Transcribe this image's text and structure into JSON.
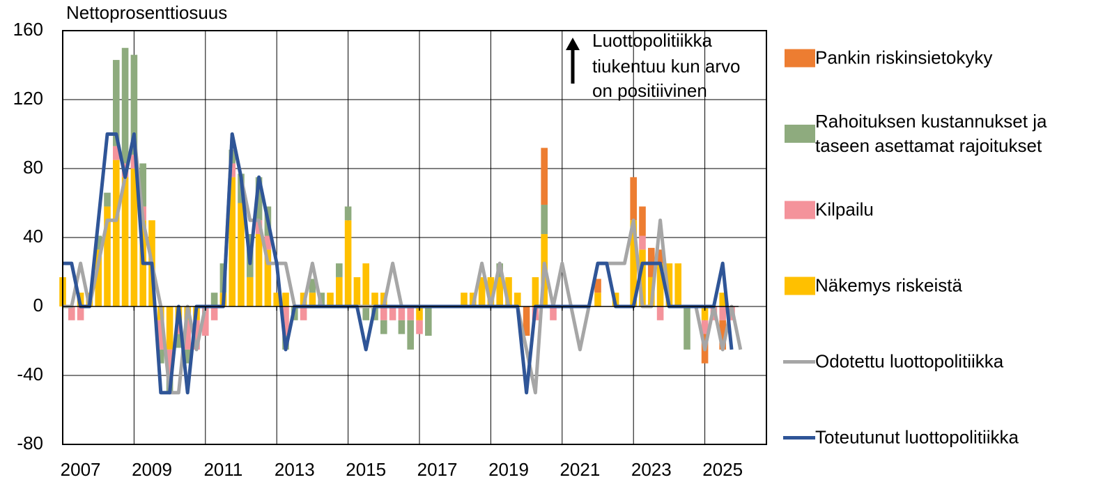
{
  "chart_data": {
    "type": "bar",
    "stacked": true,
    "y_axis_title": "Nettoprosenttiosuus",
    "annotation": [
      "Luottopolitiikka",
      "tiukentuu kun arvo",
      "on positiivinen"
    ],
    "ylim": [
      -80,
      160
    ],
    "yticks": [
      -80,
      -40,
      0,
      40,
      80,
      120,
      160
    ],
    "grid": true,
    "legend": "right",
    "categories": [
      null,
      null,
      "2007",
      null,
      null,
      null,
      null,
      null,
      null,
      null,
      "2009",
      null,
      null,
      null,
      null,
      null,
      null,
      null,
      "2011",
      null,
      null,
      null,
      null,
      null,
      null,
      null,
      "2013",
      null,
      null,
      null,
      null,
      null,
      null,
      null,
      "2015",
      null,
      null,
      null,
      null,
      null,
      null,
      null,
      "2017",
      null,
      null,
      null,
      null,
      null,
      null,
      null,
      "2019",
      null,
      null,
      null,
      null,
      null,
      null,
      null,
      "2021",
      null,
      null,
      null,
      null,
      null,
      null,
      null,
      "2023",
      null,
      null,
      null,
      null,
      null,
      null,
      null,
      "2025",
      null,
      null
    ],
    "series": [
      {
        "name": "Pankin riskinsietokyky",
        "type": "bar",
        "color": "#ED7D31",
        "values": [
          0,
          0,
          0,
          0,
          0,
          0,
          0,
          0,
          0,
          0,
          0,
          0,
          0,
          0,
          0,
          0,
          0,
          0,
          0,
          0,
          0,
          0,
          0,
          0,
          0,
          0,
          0,
          0,
          0,
          0,
          0,
          0,
          0,
          0,
          0,
          0,
          0,
          0,
          0,
          0,
          0,
          0,
          0,
          0,
          0,
          0,
          0,
          0,
          0,
          0,
          0,
          0,
          -17,
          0,
          33,
          0,
          0,
          0,
          0,
          0,
          8,
          0,
          0,
          0,
          25,
          17,
          17,
          8,
          0,
          0,
          0,
          0,
          -17,
          0,
          -17,
          0,
          0
        ]
      },
      {
        "name": "Rahoituksen kustannukset ja taseen asettamat rajoitukset",
        "type": "bar",
        "color": "#8EAB7E",
        "values": [
          0,
          0,
          0,
          0,
          8,
          8,
          50,
          67,
          58,
          25,
          0,
          -8,
          -8,
          -8,
          -8,
          0,
          0,
          8,
          17,
          8,
          17,
          25,
          25,
          17,
          0,
          -8,
          -8,
          0,
          8,
          8,
          0,
          8,
          8,
          0,
          -8,
          -8,
          -8,
          0,
          -8,
          -17,
          0,
          -17,
          0,
          0,
          0,
          0,
          0,
          0,
          0,
          8,
          0,
          0,
          0,
          0,
          17,
          0,
          0,
          0,
          0,
          0,
          0,
          0,
          0,
          0,
          0,
          0,
          0,
          0,
          0,
          0,
          -25,
          0,
          0,
          0,
          0,
          0,
          0
        ]
      },
      {
        "name": "Kilpailu",
        "type": "bar",
        "color": "#F4939B",
        "values": [
          0,
          -8,
          -8,
          0,
          0,
          0,
          8,
          8,
          8,
          8,
          0,
          -17,
          -17,
          -8,
          -17,
          -17,
          -17,
          -8,
          0,
          8,
          0,
          0,
          8,
          8,
          0,
          -17,
          0,
          -8,
          0,
          0,
          0,
          0,
          0,
          0,
          0,
          0,
          -8,
          -8,
          -8,
          -8,
          -8,
          0,
          0,
          0,
          0,
          0,
          0,
          0,
          0,
          0,
          0,
          0,
          0,
          -8,
          0,
          -8,
          0,
          0,
          0,
          0,
          0,
          0,
          0,
          0,
          0,
          8,
          0,
          -8,
          0,
          0,
          0,
          0,
          -8,
          -8,
          -8,
          -8,
          0
        ]
      },
      {
        "name": "Näkemys riskeistä",
        "type": "bar",
        "color": "#FFC000",
        "values": [
          17,
          0,
          8,
          8,
          33,
          58,
          85,
          75,
          80,
          50,
          50,
          -8,
          -25,
          -8,
          -8,
          -8,
          0,
          0,
          8,
          75,
          60,
          17,
          42,
          33,
          8,
          8,
          0,
          8,
          8,
          0,
          8,
          17,
          50,
          17,
          25,
          8,
          8,
          0,
          0,
          0,
          -8,
          0,
          0,
          0,
          0,
          8,
          8,
          17,
          17,
          17,
          17,
          8,
          0,
          17,
          42,
          0,
          0,
          0,
          0,
          0,
          8,
          0,
          8,
          0,
          50,
          33,
          17,
          25,
          25,
          25,
          0,
          0,
          -8,
          0,
          8,
          0,
          0
        ]
      },
      {
        "name": "Odotettu luottopolitiikka",
        "type": "line",
        "color": "#A6A6A6",
        "values": [
          0,
          0,
          25,
          0,
          25,
          50,
          50,
          75,
          100,
          50,
          25,
          0,
          -50,
          -50,
          0,
          -25,
          0,
          0,
          0,
          100,
          75,
          50,
          50,
          25,
          25,
          25,
          0,
          0,
          25,
          0,
          0,
          0,
          0,
          0,
          0,
          0,
          0,
          25,
          0,
          0,
          0,
          0,
          0,
          0,
          0,
          0,
          0,
          25,
          0,
          25,
          0,
          0,
          -25,
          -50,
          25,
          0,
          25,
          0,
          -25,
          0,
          25,
          25,
          25,
          25,
          50,
          0,
          0,
          50,
          0,
          0,
          0,
          0,
          -25,
          0,
          -25,
          0,
          -25
        ]
      },
      {
        "name": "Toteutunut luottopolitiikka",
        "type": "line",
        "color": "#2F5597",
        "values": [
          25,
          25,
          0,
          0,
          50,
          100,
          100,
          75,
          100,
          25,
          25,
          -50,
          -50,
          0,
          -50,
          0,
          0,
          0,
          0,
          100,
          75,
          25,
          75,
          50,
          25,
          -25,
          0,
          0,
          0,
          0,
          0,
          0,
          0,
          0,
          -25,
          0,
          0,
          0,
          0,
          0,
          0,
          0,
          0,
          0,
          0,
          0,
          0,
          0,
          0,
          0,
          0,
          0,
          -50,
          0,
          0,
          0,
          0,
          0,
          0,
          0,
          25,
          25,
          0,
          0,
          0,
          25,
          25,
          25,
          0,
          0,
          0,
          0,
          0,
          0,
          25,
          -25,
          null
        ]
      }
    ]
  }
}
